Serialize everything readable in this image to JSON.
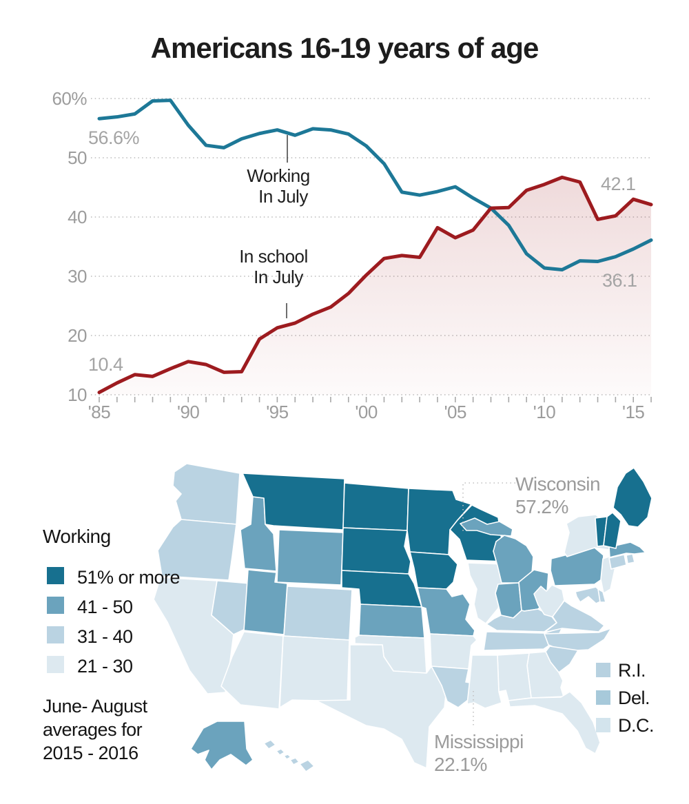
{
  "title": "Americans 16-19 years of age",
  "chart_data": [
    {
      "type": "line",
      "title": "Americans 16-19 years of age",
      "x": [
        1985,
        1986,
        1987,
        1988,
        1989,
        1990,
        1991,
        1992,
        1993,
        1994,
        1995,
        1996,
        1997,
        1998,
        1999,
        2000,
        2001,
        2002,
        2003,
        2004,
        2005,
        2006,
        2007,
        2008,
        2009,
        2010,
        2011,
        2012,
        2013,
        2014,
        2015,
        2016
      ],
      "series": [
        {
          "name": "Working In July",
          "color": "#1d7897",
          "values": [
            56.6,
            56.9,
            57.4,
            59.6,
            59.7,
            55.5,
            52.1,
            51.7,
            53.2,
            54.1,
            54.7,
            53.8,
            54.9,
            54.7,
            54.0,
            52.0,
            49.0,
            44.2,
            43.7,
            44.3,
            45.1,
            43.2,
            41.5,
            38.6,
            33.8,
            31.4,
            31.1,
            32.6,
            32.5,
            33.3,
            34.6,
            36.1
          ]
        },
        {
          "name": "In school In July",
          "color": "#9d1b1f",
          "area": true,
          "values": [
            10.4,
            12.0,
            13.4,
            13.1,
            14.4,
            15.6,
            15.1,
            13.8,
            13.9,
            19.4,
            21.3,
            22.1,
            23.6,
            24.8,
            27.1,
            30.2,
            33.0,
            33.5,
            33.2,
            38.2,
            36.5,
            37.8,
            41.5,
            41.6,
            44.5,
            45.5,
            46.7,
            45.9,
            39.6,
            40.2,
            43.0,
            42.1
          ]
        }
      ],
      "ylim": [
        10,
        60
      ],
      "yticks": [
        60,
        50,
        40,
        30,
        20,
        10
      ],
      "ytick_labels": [
        "60%",
        "50",
        "40",
        "30",
        "20",
        "10"
      ],
      "xticks": [
        1985,
        1990,
        1995,
        2000,
        2005,
        2010,
        2015
      ],
      "xtick_labels": [
        "'85",
        "'90",
        "'95",
        "'00",
        "'05",
        "'10",
        "'15"
      ],
      "grid": "dotted",
      "point_labels": {
        "working_start": "56.6%",
        "school_start": "10.4",
        "school_end": "42.1",
        "working_end": "36.1"
      },
      "annotations": [
        {
          "lines": [
            "Working",
            "In July"
          ],
          "series": "Working In July"
        },
        {
          "lines": [
            "In school",
            "In July"
          ],
          "series": "In school In July"
        }
      ]
    },
    {
      "type": "heatmap",
      "subtype": "us-state-choropleth",
      "title": "Working — June-August averages for 2015-2016",
      "categories": [
        "51% or more",
        "41 - 50",
        "31 - 40",
        "21 - 30"
      ],
      "states": {
        "WA": "31-40",
        "OR": "31-40",
        "CA": "21-30",
        "NV": "31-40",
        "ID": "41-50",
        "MT": "51+",
        "WY": "41-50",
        "UT": "41-50",
        "CO": "31-40",
        "AZ": "21-30",
        "NM": "21-30",
        "ND": "51+",
        "SD": "51+",
        "NE": "51+",
        "KS": "41-50",
        "OK": "21-30",
        "TX": "21-30",
        "MN": "51+",
        "IA": "51+",
        "MO": "41-50",
        "AR": "21-30",
        "LA": "31-40",
        "WI": "51+",
        "IL": "21-30",
        "MS": "21-30",
        "MI_UP": "41-50",
        "MI": "41-50",
        "IN": "41-50",
        "OH": "41-50",
        "KY": "31-40",
        "TN": "31-40",
        "AL": "21-30",
        "GA": "21-30",
        "FL": "21-30",
        "SC": "31-40",
        "NC": "31-40",
        "VA": "31-40",
        "WV": "21-30",
        "PA": "41-50",
        "NY": "21-30",
        "NJ": "21-30",
        "MD": "31-40",
        "DE": "31-40",
        "CT": "31-40",
        "RI": "31-40",
        "MA": "41-50",
        "VT": "51+",
        "NH": "51+",
        "ME": "51+",
        "AK": "41-50",
        "HI1": "31-40",
        "HI2": "31-40",
        "HI3": "31-40",
        "HI4": "31-40",
        "HI5": "31-40"
      }
    }
  ],
  "map": {
    "colors": {
      "51+": "#17708f",
      "41-50": "#6ba3bd",
      "31-40": "#bad3e2",
      "21-30": "#dde9f0"
    },
    "legend": {
      "title": "Working",
      "items": [
        {
          "label": "51% or more",
          "key": "51+"
        },
        {
          "label": "41 - 50",
          "key": "41-50"
        },
        {
          "label": "31 - 40",
          "key": "31-40"
        },
        {
          "label": "21 - 30",
          "key": "21-30"
        }
      ],
      "note_lines": [
        "June- August",
        "averages for",
        "2015 - 2016"
      ]
    },
    "callouts": {
      "wisconsin": {
        "name": "Wisconsin",
        "value": "57.2%"
      },
      "mississippi": {
        "name": "Mississippi",
        "value": "22.1%"
      }
    },
    "small_areas": [
      {
        "label": "R.I.",
        "category": "31-40",
        "swatch": "#b7d1e0"
      },
      {
        "label": "Del.",
        "category": "31-40",
        "swatch": "#a7c9da"
      },
      {
        "label": "D.C.",
        "category": "21-30",
        "swatch": "#d3e4ed"
      }
    ]
  }
}
